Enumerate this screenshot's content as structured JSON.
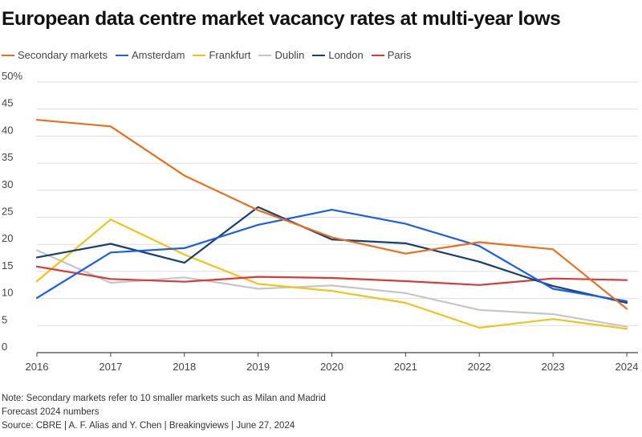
{
  "chart_data": {
    "type": "line",
    "title": "European data centre market vacancy rates at multi-year lows",
    "xlabel": "",
    "ylabel": "",
    "x": [
      "2016",
      "2017",
      "2018",
      "2019",
      "2020",
      "2021",
      "2022",
      "2023",
      "2024"
    ],
    "ylim": [
      0,
      50
    ],
    "yticks": [
      0,
      5,
      10,
      15,
      20,
      25,
      30,
      35,
      40,
      45,
      50
    ],
    "ytick_labels": [
      "0",
      "5",
      "10",
      "15",
      "20",
      "25",
      "30",
      "35",
      "40",
      "45",
      "50%"
    ],
    "grid": true,
    "legend_position": "top-left",
    "series": [
      {
        "name": "Secondary markets",
        "color": "#e6701e",
        "values": [
          43.0,
          41.8,
          32.7,
          26.3,
          21.3,
          18.3,
          20.4,
          19.1,
          8.1
        ]
      },
      {
        "name": "Amsterdam",
        "color": "#1b5fe0",
        "values": [
          10.1,
          18.5,
          19.3,
          23.6,
          26.4,
          23.8,
          19.7,
          11.8,
          9.5
        ]
      },
      {
        "name": "Frankfurt",
        "color": "#eec31a",
        "values": [
          13.2,
          24.6,
          18.1,
          12.7,
          11.4,
          9.2,
          4.6,
          6.2,
          4.4
        ]
      },
      {
        "name": "Dublin",
        "color": "#c6c6c6",
        "values": [
          18.9,
          12.9,
          13.9,
          11.8,
          12.4,
          11.0,
          7.9,
          7.1,
          4.8
        ]
      },
      {
        "name": "London",
        "color": "#173f70",
        "values": [
          17.6,
          20.1,
          16.6,
          26.9,
          20.9,
          20.2,
          16.8,
          12.3,
          9.2
        ]
      },
      {
        "name": "Paris",
        "color": "#d63a3a",
        "values": [
          15.9,
          13.6,
          13.1,
          14.0,
          13.8,
          13.2,
          12.5,
          13.7,
          13.4
        ]
      }
    ]
  },
  "notes": {
    "note": "Note: Secondary markets refer to 10 smaller markets such as Milan and Madrid",
    "forecast": "Forecast 2024 numbers",
    "source": "Source: CBRE | A. F. Alias and Y. Chen | Breakingviews | June 27, 2024"
  },
  "colors": {
    "grid": "#dddddd",
    "axis": "#444444",
    "tick_text": "#444444"
  }
}
